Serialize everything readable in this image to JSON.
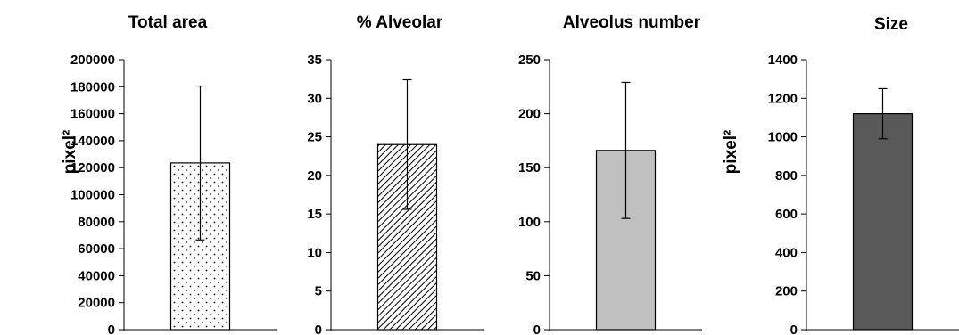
{
  "chart_data": [
    {
      "type": "bar",
      "title": "Total area",
      "ylabel": "pixel²",
      "categories": [
        ""
      ],
      "values": [
        123500
      ],
      "error": [
        57000
      ],
      "ylim": [
        0,
        200000
      ],
      "yticks": [
        0,
        20000,
        40000,
        60000,
        80000,
        100000,
        120000,
        140000,
        160000,
        180000,
        200000
      ],
      "fill": "dots",
      "color": "#ffffff",
      "grid": false
    },
    {
      "type": "bar",
      "title": "% Alveolar",
      "ylabel": "",
      "categories": [
        ""
      ],
      "values": [
        24
      ],
      "error": [
        8.4
      ],
      "ylim": [
        0,
        35
      ],
      "yticks": [
        0,
        5,
        10,
        15,
        20,
        25,
        30,
        35
      ],
      "fill": "diagonal-hatch",
      "color": "#ffffff",
      "grid": false
    },
    {
      "type": "bar",
      "title": "Alveolus number",
      "ylabel": "",
      "categories": [
        ""
      ],
      "values": [
        166
      ],
      "error": [
        63
      ],
      "ylim": [
        0,
        250
      ],
      "yticks": [
        0,
        50,
        100,
        150,
        200,
        250
      ],
      "fill": "solid",
      "color": "#c0c0c0",
      "grid": false
    },
    {
      "type": "bar",
      "title": "Size",
      "ylabel": "pixel²",
      "categories": [
        ""
      ],
      "values": [
        1120
      ],
      "error": [
        130
      ],
      "ylim": [
        0,
        1400
      ],
      "yticks": [
        0,
        200,
        400,
        600,
        800,
        1000,
        1200,
        1400
      ],
      "fill": "solid",
      "color": "#595959",
      "grid": false
    }
  ]
}
